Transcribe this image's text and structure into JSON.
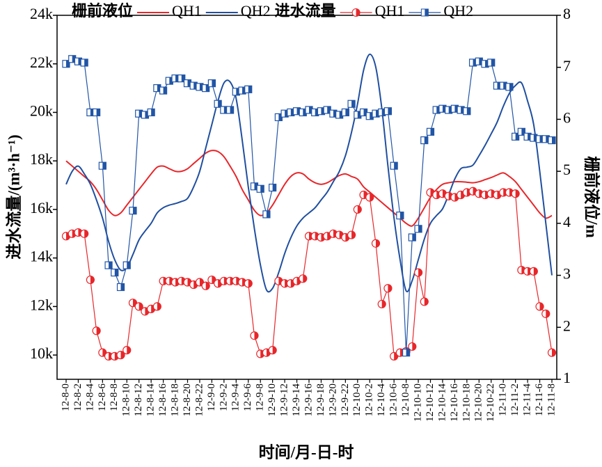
{
  "chart_data": {
    "type": "line",
    "x_label": "时间/月-日-时",
    "y_label": "进水流量/(m³·h⁻¹)",
    "y2_label": "栅前液位/m",
    "categories": [
      "12-8-0",
      null,
      "12-8-2",
      null,
      "12-8-4",
      null,
      "12-8-6",
      null,
      "12-8-8",
      null,
      "12-8-10",
      null,
      "12-8-12",
      null,
      "12-8-14",
      null,
      "12-8-16",
      null,
      "12-8-18",
      null,
      "12-8-20",
      null,
      "12-8-22",
      null,
      "12-9-0",
      null,
      "12-9-2",
      null,
      "12-9-4",
      null,
      "12-9-6",
      null,
      "12-9-8",
      null,
      "12-9-10",
      null,
      "12-9-12",
      null,
      "12-9-14",
      null,
      "12-9-16",
      null,
      "12-9-18",
      null,
      "12-9-20",
      null,
      "12-9-22",
      null,
      "12-10-0",
      null,
      "12-10-2",
      null,
      "12-10-4",
      null,
      "12-10-6",
      null,
      "12-10-8",
      null,
      "12-10-10",
      null,
      "12-10-12",
      null,
      "12-10-14",
      null,
      "12-10-16",
      null,
      "12-10-18",
      null,
      "12-10-20",
      null,
      "12-10-22",
      null,
      "12-11-0",
      null,
      "12-11-2",
      null,
      "12-11-4",
      null,
      "12-11-6",
      null,
      "12-11-8"
    ],
    "ylim": [
      9000,
      24000
    ],
    "yticks": [
      {
        "value": 10000,
        "label": "10k"
      },
      {
        "value": 12000,
        "label": "12k"
      },
      {
        "value": 14000,
        "label": "14k"
      },
      {
        "value": 16000,
        "label": "16k"
      },
      {
        "value": 18000,
        "label": "18k"
      },
      {
        "value": 20000,
        "label": "20k"
      },
      {
        "value": 22000,
        "label": "22k"
      },
      {
        "value": 24000,
        "label": "24k"
      }
    ],
    "y2lim": [
      1,
      8
    ],
    "y2ticks": [
      1,
      2,
      3,
      4,
      5,
      6,
      7,
      8
    ],
    "series_groups": [
      {
        "name": "栅前液位",
        "axis": "y2",
        "series": [
          {
            "name": "QH1",
            "color": "#e8262a",
            "marker": "none",
            "smooth": true,
            "values": [
              5.2,
              5.1,
              5.0,
              4.9,
              4.8,
              4.65,
              4.45,
              4.25,
              4.15,
              4.2,
              4.35,
              4.5,
              4.65,
              4.8,
              4.95,
              5.08,
              5.1,
              5.05,
              5.0,
              5.0,
              5.05,
              5.15,
              5.25,
              5.35,
              5.4,
              5.38,
              5.28,
              5.1,
              4.9,
              4.65,
              4.45,
              4.25,
              4.15,
              4.2,
              4.35,
              4.55,
              4.75,
              4.9,
              4.97,
              4.95,
              4.85,
              4.78,
              4.75,
              4.78,
              4.85,
              4.92,
              4.95,
              4.9,
              4.85,
              4.7,
              4.6,
              4.5,
              4.4,
              4.3,
              4.2,
              4.1,
              4.0,
              3.95,
              4.1,
              4.3,
              4.5,
              4.65,
              4.75,
              4.78,
              4.8,
              4.8,
              4.79,
              4.78,
              4.8,
              4.84,
              4.88,
              4.93,
              4.97,
              4.9,
              4.8,
              4.65,
              4.5,
              4.35,
              4.2,
              4.1,
              4.15
            ]
          },
          {
            "name": "QH2",
            "color": "#1f4fa0",
            "marker": "none",
            "smooth": true,
            "values": [
              4.75,
              5.0,
              5.1,
              4.95,
              4.75,
              4.45,
              4.1,
              3.65,
              3.3,
              3.1,
              3.15,
              3.4,
              3.68,
              3.85,
              4.0,
              4.2,
              4.3,
              4.35,
              4.38,
              4.42,
              4.48,
              4.7,
              5.0,
              5.45,
              5.9,
              6.35,
              6.7,
              6.72,
              6.4,
              5.6,
              4.7,
              3.9,
              3.2,
              2.72,
              2.75,
              3.05,
              3.42,
              3.72,
              3.95,
              4.1,
              4.2,
              4.3,
              4.45,
              4.6,
              4.8,
              5.0,
              5.3,
              5.75,
              6.3,
              6.95,
              7.25,
              7.0,
              6.2,
              5.1,
              4.1,
              3.3,
              2.7,
              2.9,
              3.3,
              3.7,
              4.0,
              4.15,
              4.28,
              4.55,
              4.85,
              5.05,
              5.08,
              5.12,
              5.3,
              5.5,
              5.72,
              5.95,
              6.25,
              6.5,
              6.65,
              6.7,
              6.35,
              5.9,
              5.0,
              4.0,
              3.0
            ]
          }
        ]
      },
      {
        "name": "进水流量",
        "axis": "y",
        "series": [
          {
            "name": "QH1",
            "color": "#e8262a",
            "marker": "circle",
            "smooth": false,
            "values": [
              14900,
              15000,
              15050,
              15000,
              13100,
              11000,
              10100,
              9950,
              9950,
              10000,
              10200,
              12150,
              12000,
              11800,
              11900,
              12000,
              13050,
              13050,
              13000,
              13050,
              13000,
              12900,
              13000,
              12850,
              13100,
              12950,
              13050,
              13050,
              13050,
              13000,
              12950,
              10800,
              10050,
              10100,
              10200,
              13050,
              12950,
              12950,
              13050,
              13150,
              14900,
              14900,
              14850,
              14900,
              15000,
              14950,
              14850,
              14950,
              16000,
              16600,
              16500,
              14600,
              12100,
              12750,
              9950,
              10100,
              10150,
              10350,
              13400,
              12200,
              16700,
              16600,
              16650,
              16550,
              16500,
              16600,
              16700,
              16750,
              16650,
              16600,
              16650,
              16600,
              16700,
              16700,
              16650,
              13500,
              13450,
              13450,
              12000,
              11700,
              10100
            ]
          },
          {
            "name": "QH2",
            "color": "#2155a6",
            "marker": "square",
            "smooth": false,
            "values": [
              22000,
              22200,
              22100,
              22050,
              20000,
              20000,
              17800,
              13700,
              13400,
              12800,
              13700,
              15950,
              19950,
              19900,
              20000,
              21000,
              20900,
              21300,
              21400,
              21400,
              21200,
              21100,
              21050,
              21000,
              21200,
              20350,
              20100,
              20100,
              20850,
              20900,
              20950,
              16950,
              16850,
              15800,
              16900,
              19800,
              19950,
              20000,
              20050,
              20000,
              20100,
              20000,
              20050,
              20100,
              19950,
              19900,
              20000,
              20350,
              19900,
              20000,
              19850,
              19950,
              20000,
              20050,
              17800,
              15750,
              10100,
              14850,
              15200,
              18850,
              19200,
              20100,
              20150,
              20100,
              20150,
              20100,
              20050,
              22050,
              22100,
              22000,
              22050,
              21100,
              21100,
              21050,
              19000,
              19200,
              19000,
              18950,
              18900,
              18900,
              18850
            ]
          }
        ]
      }
    ]
  }
}
